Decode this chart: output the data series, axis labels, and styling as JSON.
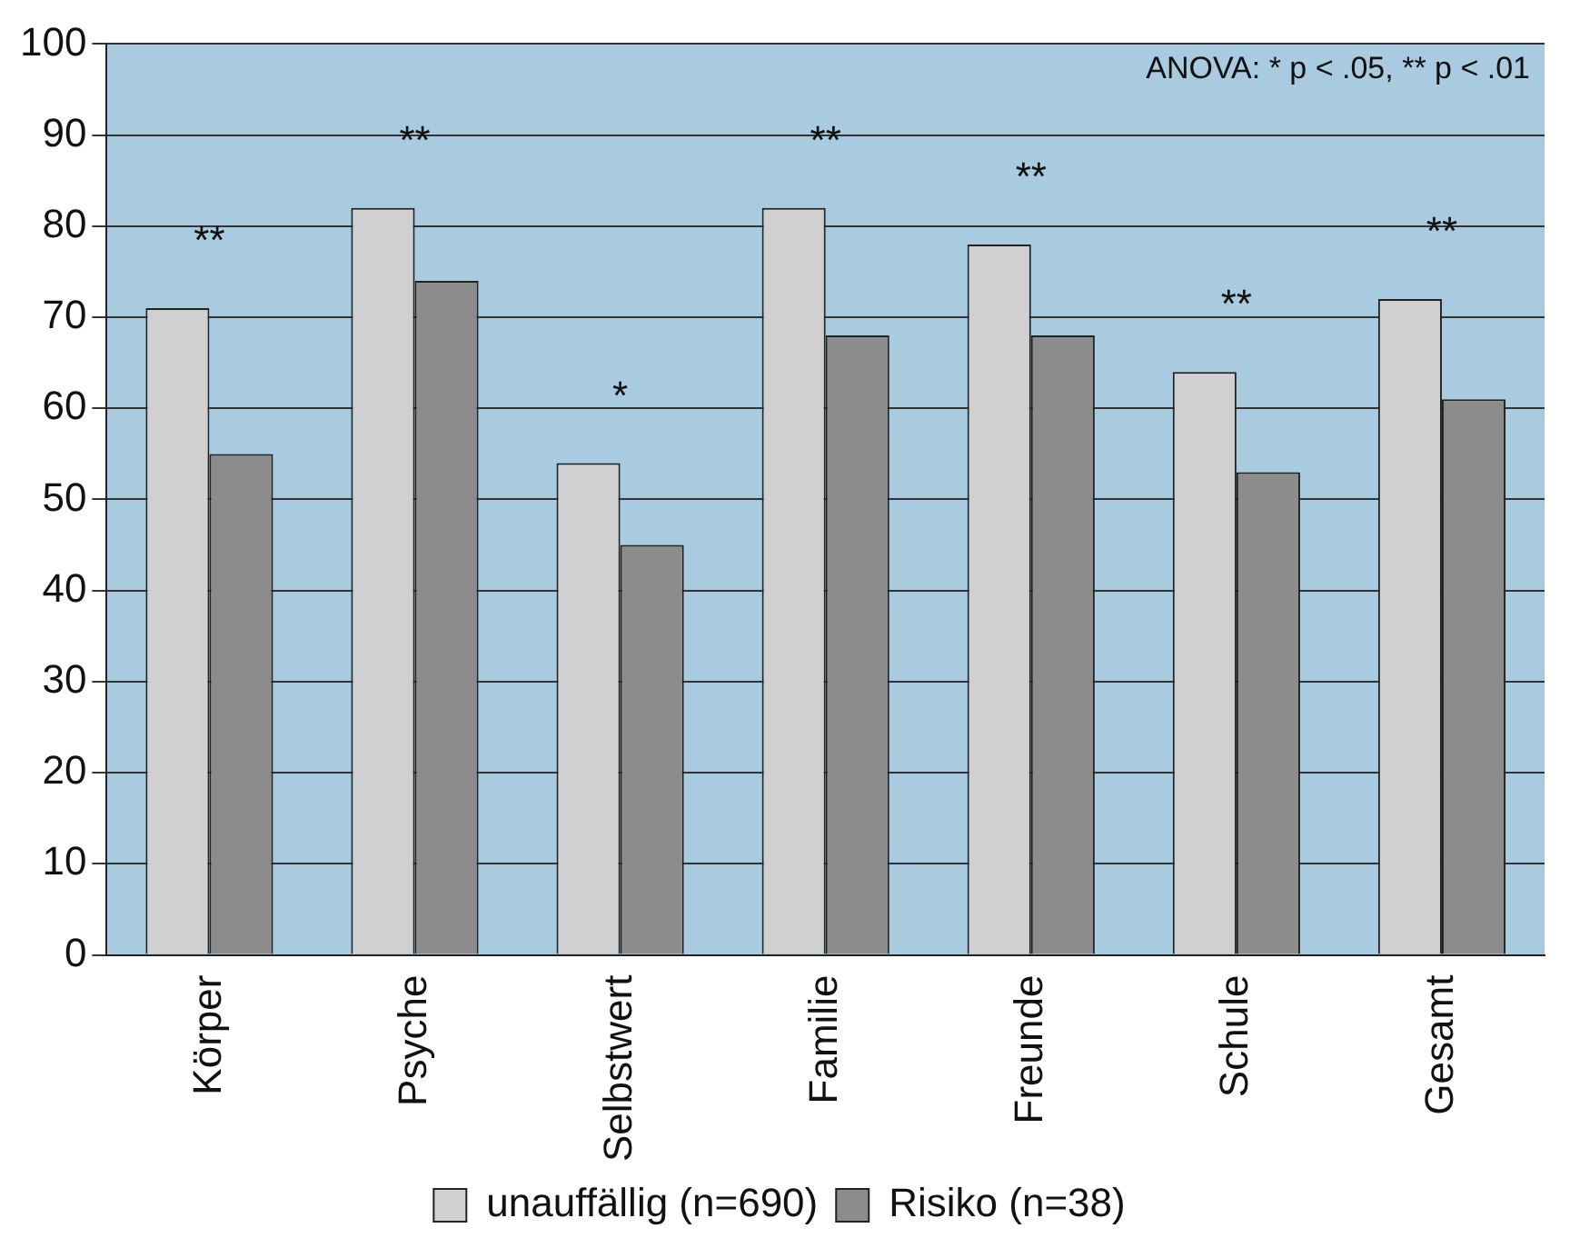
{
  "chart_data": {
    "type": "bar",
    "categories": [
      "Körper",
      "Psyche",
      "Selbstwert",
      "Familie",
      "Freunde",
      "Schule",
      "Gesamt"
    ],
    "series": [
      {
        "name": "unauffällig (n=690)",
        "color": "#d0d0d0",
        "values": [
          71,
          82,
          54,
          82,
          78,
          64,
          72
        ]
      },
      {
        "name": "Risiko (n=38)",
        "color": "#8c8c8c",
        "values": [
          55,
          74,
          45,
          68,
          68,
          53,
          61
        ]
      }
    ],
    "ylim": [
      0,
      100
    ],
    "yticks": [
      0,
      10,
      20,
      30,
      40,
      50,
      60,
      70,
      80,
      90,
      100
    ],
    "grid": "y",
    "legend": "bottom",
    "annotations": [
      "ANOVA: * p < .05, ** p < .01",
      "**",
      "**",
      "*",
      "**",
      "**",
      "**",
      "**"
    ]
  }
}
